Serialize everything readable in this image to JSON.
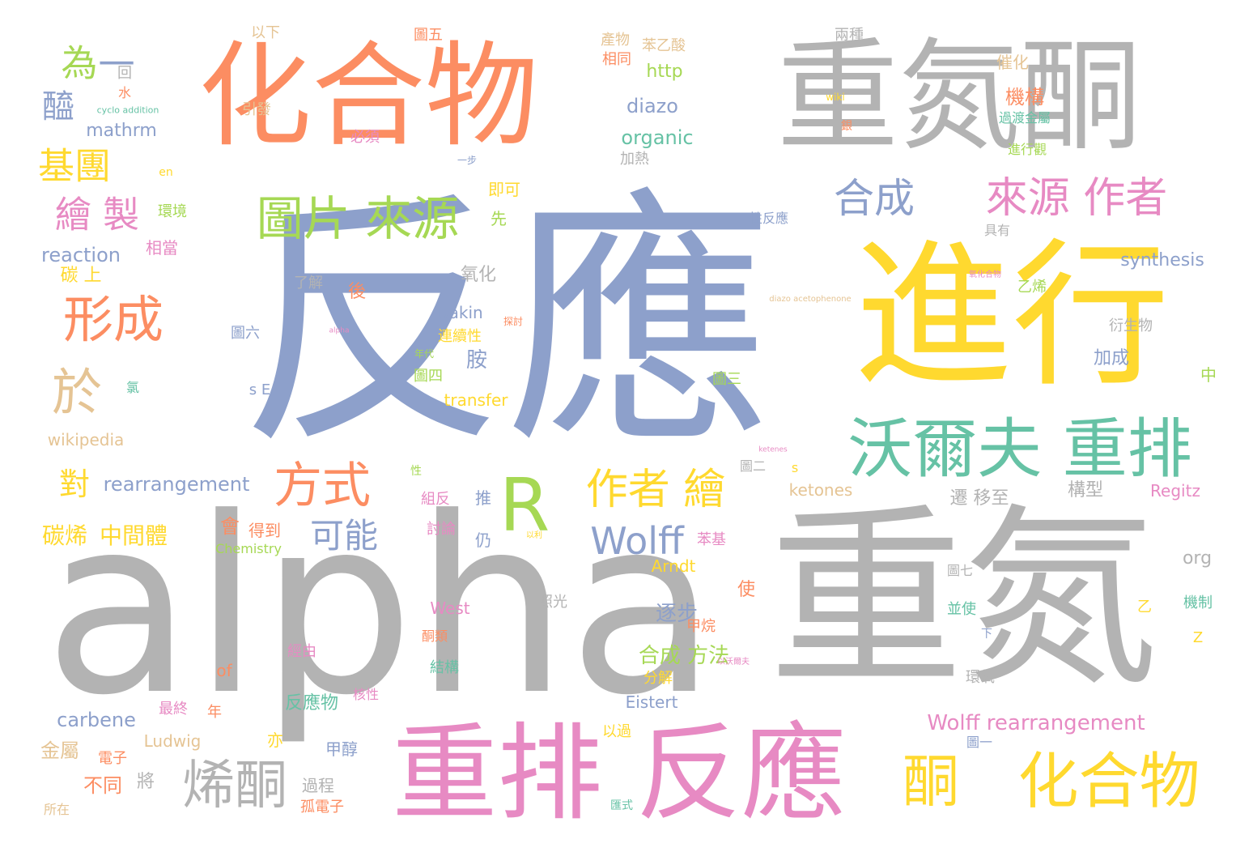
{
  "words": [
    {
      "id": "w-fanying",
      "text": "反應",
      "color": "#8da0cb"
    },
    {
      "id": "w-alpha",
      "text": "alpha",
      "color": "#b3b3b3"
    },
    {
      "id": "w-zhongdan",
      "text": "重氮",
      "color": "#b3b3b3"
    },
    {
      "id": "w-zhongdantong",
      "text": "重氮酮",
      "color": "#b3b3b3"
    },
    {
      "id": "w-huahewu-top",
      "text": "化合物",
      "color": "#fc8d62"
    },
    {
      "id": "w-jinxing",
      "text": "進行",
      "color": "#ffd92f"
    },
    {
      "id": "w-zhongpai-fanying",
      "text": "重排 反應",
      "color": "#e78ac3"
    },
    {
      "id": "w-woerfu",
      "text": "沃爾夫 重排",
      "color": "#66c2a5"
    },
    {
      "id": "w-R",
      "text": "R",
      "color": "#a6d854"
    },
    {
      "id": "w-huahewu-bottom",
      "text": "化合物",
      "color": "#ffd92f"
    },
    {
      "id": "w-tong",
      "text": "酮",
      "color": "#ffd92f"
    },
    {
      "id": "w-xitong",
      "text": "烯酮",
      "color": "#b3b3b3"
    },
    {
      "id": "w-tupian-laiyuan",
      "text": "圖片 來源",
      "color": "#a6d854"
    },
    {
      "id": "w-laiyuan-zuozhe",
      "text": "來源 作者",
      "color": "#e78ac3"
    },
    {
      "id": "w-xingcheng",
      "text": "形成",
      "color": "#fc8d62"
    },
    {
      "id": "w-yu",
      "text": "於",
      "color": "#e5c494"
    },
    {
      "id": "w-fangshi",
      "text": "方式",
      "color": "#fc8d62"
    },
    {
      "id": "w-zuozhe-hui",
      "text": "作者 繪",
      "color": "#ffd92f"
    },
    {
      "id": "w-Wolff",
      "text": "Wolff",
      "color": "#8da0cb"
    },
    {
      "id": "w-hecheng",
      "text": "合成",
      "color": "#8da0cb"
    },
    {
      "id": "w-huizhi",
      "text": "繪 製",
      "color": "#e78ac3"
    },
    {
      "id": "w-jituan",
      "text": "基團",
      "color": "#ffd92f"
    },
    {
      "id": "w-wei",
      "text": "為",
      "color": "#a6d854"
    },
    {
      "id": "w-yi",
      "text": "一",
      "color": "#8da0cb"
    },
    {
      "id": "w-xi",
      "text": "醯",
      "color": "#8da0cb"
    },
    {
      "id": "w-keneng",
      "text": "可能",
      "color": "#8da0cb"
    },
    {
      "id": "w-dui",
      "text": "對",
      "color": "#ffd92f"
    },
    {
      "id": "w-rearrangement",
      "text": "rearrangement",
      "color": "#8da0cb"
    },
    {
      "id": "w-tanxi",
      "text": "碳烯",
      "color": "#ffd92f"
    },
    {
      "id": "w-zhongjianti",
      "text": "中間體",
      "color": "#ffd92f"
    },
    {
      "id": "w-reaction",
      "text": "reaction",
      "color": "#8da0cb"
    },
    {
      "id": "w-mathrm",
      "text": "mathrm",
      "color": "#8da0cb"
    },
    {
      "id": "w-diazo",
      "text": "diazo",
      "color": "#8da0cb"
    },
    {
      "id": "w-organic",
      "text": "organic",
      "color": "#66c2a5"
    },
    {
      "id": "w-http",
      "text": "http",
      "color": "#a6d854"
    },
    {
      "id": "w-synthesis",
      "text": "synthesis",
      "color": "#8da0cb"
    },
    {
      "id": "w-Dakin",
      "text": "Dakin",
      "color": "#8da0cb"
    },
    {
      "id": "w-transfer",
      "text": "transfer",
      "color": "#ffd92f"
    },
    {
      "id": "w-wikipedia",
      "text": "wikipedia",
      "color": "#e5c494"
    },
    {
      "id": "w-carbene",
      "text": "carbene",
      "color": "#8da0cb"
    },
    {
      "id": "w-ketones",
      "text": "ketones",
      "color": "#e5c494"
    },
    {
      "id": "w-Regitz",
      "text": "Regitz",
      "color": "#e78ac3"
    },
    {
      "id": "w-Arndt",
      "text": "Arndt",
      "color": "#ffd92f"
    },
    {
      "id": "w-West",
      "text": "West",
      "color": "#e78ac3"
    },
    {
      "id": "w-Eistert",
      "text": "Eistert",
      "color": "#8da0cb"
    },
    {
      "id": "w-Ludwig",
      "text": "Ludwig",
      "color": "#e5c494"
    },
    {
      "id": "w-Wolff-rearr",
      "text": "Wolff rearrangement",
      "color": "#e78ac3"
    },
    {
      "id": "w-org",
      "text": "org",
      "color": "#b3b3b3"
    },
    {
      "id": "w-Chemistry",
      "text": "Chemistry",
      "color": "#a6d854"
    },
    {
      "id": "w-hecheng-fangfa",
      "text": "合成 方法",
      "color": "#a6d854"
    },
    {
      "id": "w-fanyingwu",
      "text": "反應物",
      "color": "#66c2a5"
    },
    {
      "id": "w-jinshu",
      "text": "金屬",
      "color": "#e5c494"
    },
    {
      "id": "w-butong",
      "text": "不同",
      "color": "#fc8d62"
    },
    {
      "id": "w-guocheng",
      "text": "過程",
      "color": "#b3b3b3"
    },
    {
      "id": "w-jiajie",
      "text": "甲醇",
      "color": "#8da0cb"
    },
    {
      "id": "w-gudianzi",
      "text": "孤電子",
      "color": "#fc8d62"
    },
    {
      "id": "w-zhubu",
      "text": "逐步",
      "color": "#8da0cb"
    },
    {
      "id": "w-jiawan",
      "text": "甲烷",
      "color": "#fc8d62"
    },
    {
      "id": "w-fenjie",
      "text": "分解",
      "color": "#ffd92f"
    },
    {
      "id": "w-shi",
      "text": "使",
      "color": "#fc8d62"
    },
    {
      "id": "w-an",
      "text": "胺",
      "color": "#8da0cb"
    },
    {
      "id": "w-jiacheng",
      "text": "加成",
      "color": "#8da0cb"
    },
    {
      "id": "w-yanshengwu",
      "text": "衍生物",
      "color": "#b3b3b3"
    },
    {
      "id": "w-yixi",
      "text": "乙烯",
      "color": "#a6d854"
    },
    {
      "id": "w-goxing",
      "text": "構型",
      "color": "#b3b3b3"
    },
    {
      "id": "w-yizhi",
      "text": "遷 移至",
      "color": "#b3b3b3"
    },
    {
      "id": "w-yanghua",
      "text": "氧化",
      "color": "#b3b3b3"
    },
    {
      "id": "w-jigou",
      "text": "機構",
      "color": "#fc8d62"
    },
    {
      "id": "w-cuihua",
      "text": "催化",
      "color": "#e5c494"
    },
    {
      "id": "w-guodujinshu",
      "text": "過渡金屬",
      "color": "#66c2a5"
    },
    {
      "id": "w-jinxingguan",
      "text": "進行觀",
      "color": "#a6d854"
    },
    {
      "id": "w-liangzhong",
      "text": "兩種",
      "color": "#b3b3b3"
    },
    {
      "id": "w-yixia",
      "text": "以下",
      "color": "#e5c494"
    },
    {
      "id": "w-tuwu",
      "text": "圖五",
      "color": "#fc8d62"
    },
    {
      "id": "w-chanwu",
      "text": "產物",
      "color": "#e5c494"
    },
    {
      "id": "w-benyisuan",
      "text": "苯乙酸",
      "color": "#e5c494"
    },
    {
      "id": "w-xiangtong",
      "text": "相同",
      "color": "#fc8d62"
    },
    {
      "id": "w-yinfa",
      "text": "引發",
      "color": "#e5c494"
    },
    {
      "id": "w-bixu",
      "text": "必須",
      "color": "#e78ac3"
    },
    {
      "id": "w-jiare",
      "text": "加熱",
      "color": "#b3b3b3"
    },
    {
      "id": "w-jike",
      "text": "即可",
      "color": "#ffd92f"
    },
    {
      "id": "w-xian",
      "text": "先",
      "color": "#a6d854"
    },
    {
      "id": "w-huanjing",
      "text": "環境",
      "color": "#a6d854"
    },
    {
      "id": "w-xiangdang",
      "text": "相當",
      "color": "#e78ac3"
    },
    {
      "id": "w-tanshang",
      "text": "碳 上",
      "color": "#ffd92f"
    },
    {
      "id": "w-liaojie",
      "text": "了解",
      "color": "#b3b3b3"
    },
    {
      "id": "w-hou",
      "text": "後",
      "color": "#fc8d62"
    },
    {
      "id": "w-lianxuxing",
      "text": "連續性",
      "color": "#ffd92f"
    },
    {
      "id": "w-tusi",
      "text": "圖四",
      "color": "#a6d854"
    },
    {
      "id": "w-tuliu",
      "text": "圖六",
      "color": "#8da0cb"
    },
    {
      "id": "w-tusan",
      "text": "圖三",
      "color": "#a6d854"
    },
    {
      "id": "w-tuer",
      "text": "圖二",
      "color": "#b3b3b3"
    },
    {
      "id": "w-tuqi",
      "text": "圖七",
      "color": "#b3b3b3"
    },
    {
      "id": "w-tuyi",
      "text": "圖一",
      "color": "#8da0cb"
    },
    {
      "id": "w-xingfanying",
      "text": "性反應",
      "color": "#8da0cb"
    },
    {
      "id": "w-juyou",
      "text": "具有",
      "color": "#b3b3b3"
    },
    {
      "id": "w-zhongxiong",
      "text": "中",
      "color": "#a6d854"
    },
    {
      "id": "w-hui",
      "text": "會",
      "color": "#fc8d62"
    },
    {
      "id": "w-dedao",
      "text": "得到",
      "color": "#fc8d62"
    },
    {
      "id": "w-lufan",
      "text": "組反",
      "color": "#e78ac3"
    },
    {
      "id": "w-tui",
      "text": "推",
      "color": "#8da0cb"
    },
    {
      "id": "w-taolun",
      "text": "討論",
      "color": "#e78ac3"
    },
    {
      "id": "w-reng",
      "text": "仍",
      "color": "#8da0cb"
    },
    {
      "id": "w-benji",
      "text": "苯基",
      "color": "#e78ac3"
    },
    {
      "id": "w-zhaoguang",
      "text": "照光",
      "color": "#b3b3b3"
    },
    {
      "id": "w-tonglei",
      "text": "酮類",
      "color": "#fc8d62"
    },
    {
      "id": "w-jingyou",
      "text": "經由",
      "color": "#e78ac3"
    },
    {
      "id": "w-jiegou",
      "text": "結構",
      "color": "#66c2a5"
    },
    {
      "id": "w-of",
      "text": "of",
      "color": "#fc8d62"
    },
    {
      "id": "w-hexing",
      "text": "核性",
      "color": "#e78ac3"
    },
    {
      "id": "w-zuizhong",
      "text": "最終",
      "color": "#e78ac3"
    },
    {
      "id": "w-nian",
      "text": "年",
      "color": "#fc8d62"
    },
    {
      "id": "w-yiguo",
      "text": "以過",
      "color": "#ffd92f"
    },
    {
      "id": "w-yi2",
      "text": "亦",
      "color": "#ffd92f"
    },
    {
      "id": "w-jiang",
      "text": "將",
      "color": "#b3b3b3"
    },
    {
      "id": "w-dianzi",
      "text": "電子",
      "color": "#fc8d62"
    },
    {
      "id": "w-suozai",
      "text": "所在",
      "color": "#e5c494"
    },
    {
      "id": "w-huanyang",
      "text": "環氧",
      "color": "#b3b3b3"
    },
    {
      "id": "w-bingshi",
      "text": "並使",
      "color": "#66c2a5"
    },
    {
      "id": "w-jizhi",
      "text": "機制",
      "color": "#66c2a5"
    },
    {
      "id": "w-yi3",
      "text": "乙",
      "color": "#ffd92f"
    },
    {
      "id": "w-Z",
      "text": "Z",
      "color": "#ffd92f"
    },
    {
      "id": "w-xia",
      "text": "下",
      "color": "#8da0cb"
    },
    {
      "id": "w-sE",
      "text": "s E",
      "color": "#8da0cb"
    },
    {
      "id": "w-s",
      "text": "s",
      "color": "#ffd92f"
    },
    {
      "id": "w-lu",
      "text": "氯",
      "color": "#66c2a5"
    },
    {
      "id": "w-shui",
      "text": "水",
      "color": "#fc8d62"
    },
    {
      "id": "w-hui2",
      "text": "回",
      "color": "#b3b3b3"
    },
    {
      "id": "w-xing",
      "text": "性",
      "color": "#a6d854"
    },
    {
      "id": "w-huashi",
      "text": "匯式",
      "color": "#66c2a5"
    },
    {
      "id": "w-cycloaddition",
      "text": "cyclo addition",
      "color": "#66c2a5"
    },
    {
      "id": "w-en",
      "text": "en",
      "color": "#ffd92f"
    },
    {
      "id": "w-wiki",
      "text": "wiki",
      "color": "#ffd92f"
    },
    {
      "id": "w-yin",
      "text": "銀",
      "color": "#fc8d62"
    },
    {
      "id": "w-yibu",
      "text": "一步",
      "color": "#8da0cb"
    },
    {
      "id": "w-diazoaceto",
      "text": "diazo acetophenone",
      "color": "#e5c494"
    },
    {
      "id": "w-alpha-small",
      "text": "alpha",
      "color": "#e78ac3"
    },
    {
      "id": "w-keteness",
      "text": "ketenes",
      "color": "#e78ac3"
    },
    {
      "id": "w-yanghuawu",
      "text": "氧化合物",
      "color": "#e78ac3"
    },
    {
      "id": "w-niandai",
      "text": "年代",
      "color": "#a6d854"
    },
    {
      "id": "w-yilai",
      "text": "以利",
      "color": "#ffd92f"
    },
    {
      "id": "w-tanshi",
      "text": "探討",
      "color": "#fc8d62"
    },
    {
      "id": "w-yiwo",
      "text": "以沃爾夫",
      "color": "#e78ac3"
    }
  ]
}
